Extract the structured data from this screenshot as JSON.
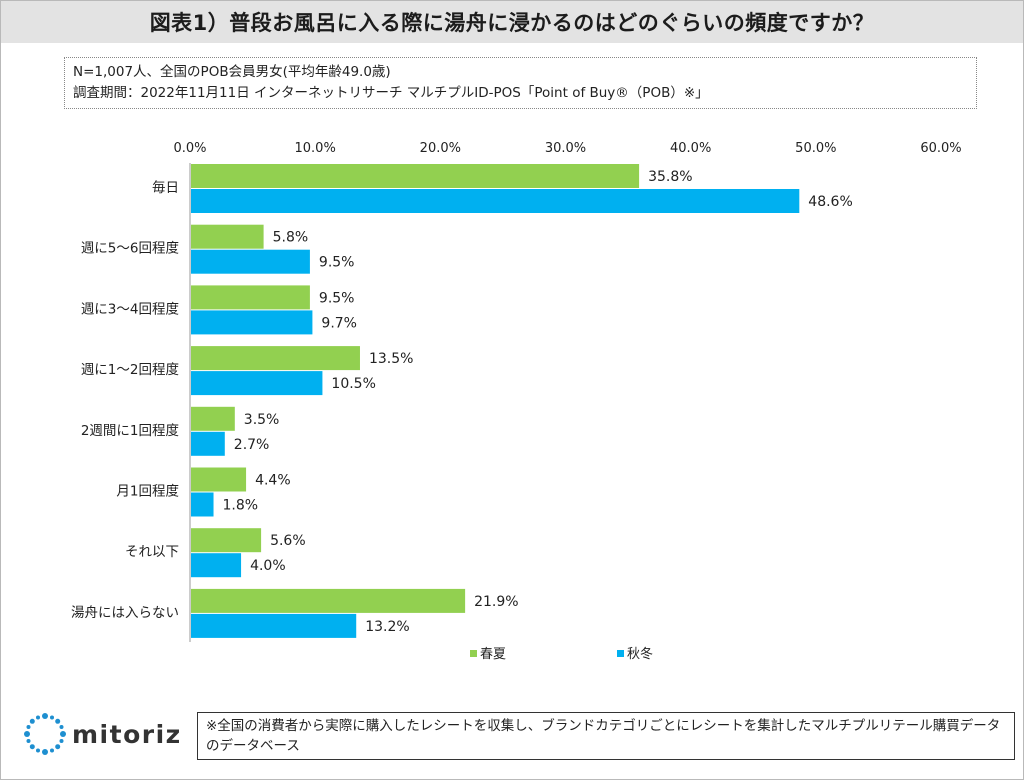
{
  "title": "図表1）普段お風呂に入る際に湯舟に浸かるのはどのぐらいの頻度ですか？",
  "note": {
    "line1": "N=1,007人、全国のPOB会員男女(平均年齢49.0歳)",
    "line2": "調査期間：2022年11月11日 インターネットリサーチ マルチプルID-POS「Point of Buy®（POB）※」"
  },
  "footer": {
    "text": "※全国の消費者から実際に購入したレシートを収集し、ブランドカテゴリごとにレシートを集計したマルチプルリテール購買データのデータベース"
  },
  "logo": {
    "text": "mitoriz",
    "icon": "mitoriz-logo-icon"
  },
  "colors": {
    "spring_summer": "#92d050",
    "autumn_winter": "#00b0f0"
  },
  "chart_data": {
    "type": "bar",
    "orientation": "horizontal",
    "title": "図表1）普段お風呂に入る際に湯舟に浸かるのはどのぐらいの頻度ですか？",
    "categories": [
      "毎日",
      "週に5～6回程度",
      "週に3～4回程度",
      "週に1～2回程度",
      "2週間に1回程度",
      "月1回程度",
      "それ以下",
      "湯舟には入らない"
    ],
    "series": [
      {
        "name": "春夏",
        "color": "#92d050",
        "values": [
          35.8,
          5.8,
          9.5,
          13.5,
          3.5,
          4.4,
          5.6,
          21.9
        ]
      },
      {
        "name": "秋冬",
        "color": "#00b0f0",
        "values": [
          48.6,
          9.5,
          9.7,
          10.5,
          2.7,
          1.8,
          4.0,
          13.2
        ]
      }
    ],
    "xlim": [
      0,
      60
    ],
    "ticks": [
      "0.0%",
      "10.0%",
      "20.0%",
      "30.0%",
      "40.0%",
      "50.0%",
      "60.0%"
    ],
    "tick_values": [
      0,
      10,
      20,
      30,
      40,
      50,
      60
    ],
    "value_format": "percent_1dp",
    "grid": false,
    "legend_position": "bottom"
  }
}
